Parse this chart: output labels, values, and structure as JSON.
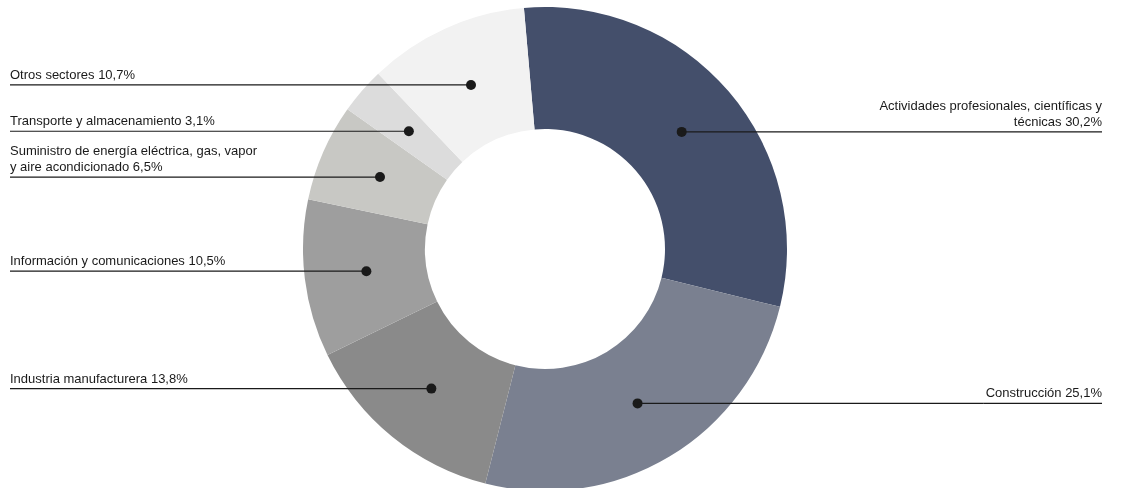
{
  "chart_data": {
    "type": "donut",
    "categories": [
      "Actividades profesionales, científicas y técnicas",
      "Construcción",
      "Industria manufacturera",
      "Información y comunicaciones",
      "Suministro de energía eléctrica, gas, vapor y aire acondicionado",
      "Transporte y almacenamiento",
      "Otros sectores"
    ],
    "values": [
      30.2,
      25.1,
      13.8,
      10.5,
      6.5,
      3.1,
      10.7
    ],
    "value_labels": [
      "30,2%",
      "25,1%",
      "13,8%",
      "10,5%",
      "6,5%",
      "3,1%",
      "10,7%"
    ],
    "colors": [
      "#444f6b",
      "#7a8090",
      "#8a8a8a",
      "#9e9e9e",
      "#c8c8c4",
      "#dcdcdc",
      "#f2f2f2"
    ]
  }
}
